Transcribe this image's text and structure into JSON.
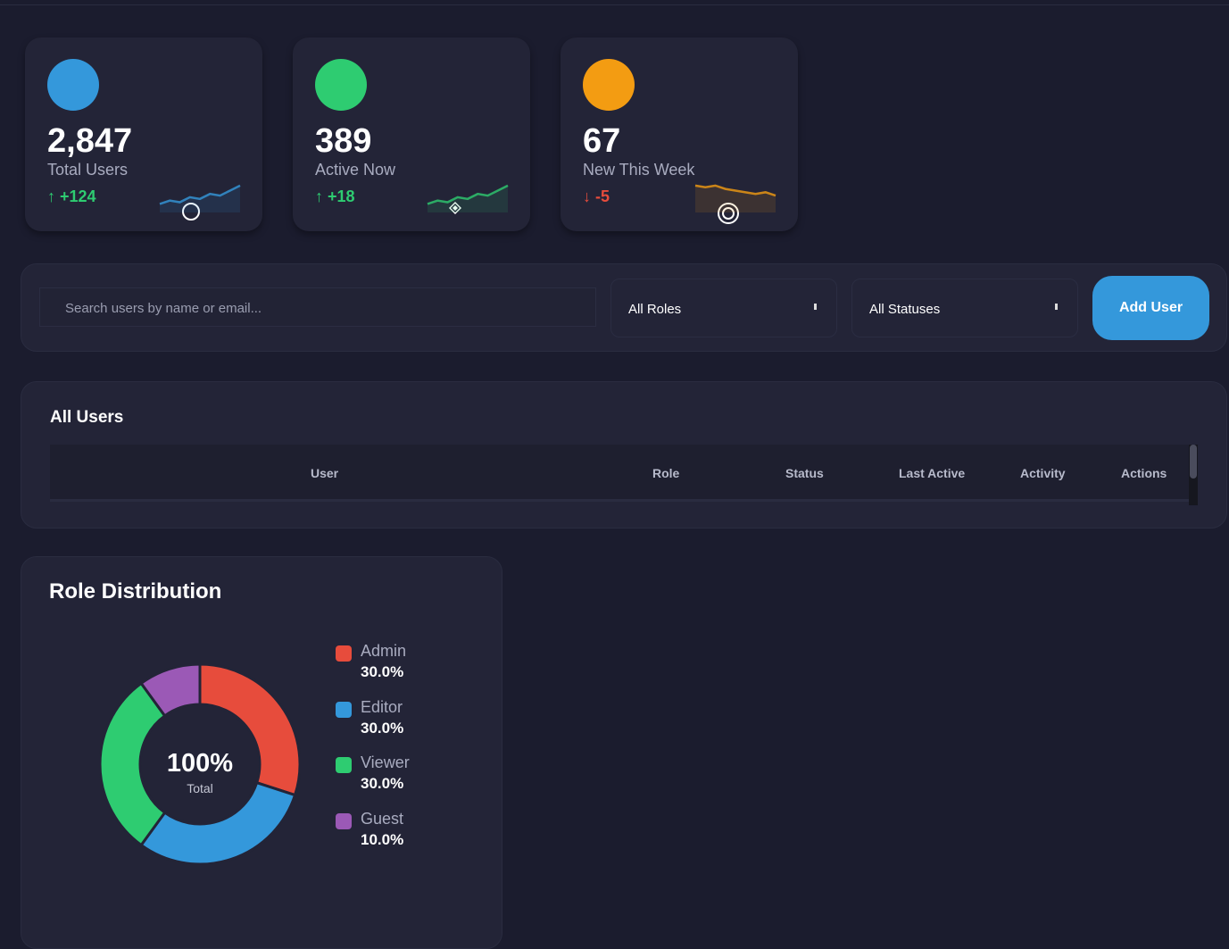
{
  "stats": [
    {
      "value": "2,847",
      "label": "Total Users",
      "change": "↑ +124",
      "trend": "up",
      "color": "#3498db",
      "icon": "circle-icon",
      "spark": [
        3,
        5,
        4,
        7,
        6,
        9,
        8,
        11,
        14
      ]
    },
    {
      "value": "389",
      "label": "Active Now",
      "change": "↑ +18",
      "trend": "up",
      "color": "#2ecc71",
      "icon": "diamond-icon",
      "spark": [
        3,
        5,
        4,
        7,
        6,
        9,
        8,
        11,
        14
      ]
    },
    {
      "value": "67",
      "label": "New This Week",
      "change": "↓ -5",
      "trend": "down",
      "color": "#f39c12",
      "icon": "target-icon",
      "spark": [
        14,
        13,
        14,
        12,
        11,
        10,
        9,
        10,
        8
      ]
    }
  ],
  "filters": {
    "search_placeholder": "Search users by name or email...",
    "role": "All Roles",
    "status": "All Statuses",
    "add_label": "Add User"
  },
  "table": {
    "title": "All Users",
    "columns": [
      "User",
      "Role",
      "Status",
      "Last Active",
      "Activity",
      "Actions"
    ]
  },
  "roles": {
    "title": "Role Distribution",
    "center_value": "100%",
    "center_label": "Total",
    "items": [
      {
        "name": "Admin",
        "percent": "30.0%",
        "value": 30,
        "color": "#e74c3c"
      },
      {
        "name": "Editor",
        "percent": "30.0%",
        "value": 30,
        "color": "#3498db"
      },
      {
        "name": "Viewer",
        "percent": "30.0%",
        "value": 30,
        "color": "#2ecc71"
      },
      {
        "name": "Guest",
        "percent": "10.0%",
        "value": 10,
        "color": "#9b59b6"
      }
    ]
  }
}
